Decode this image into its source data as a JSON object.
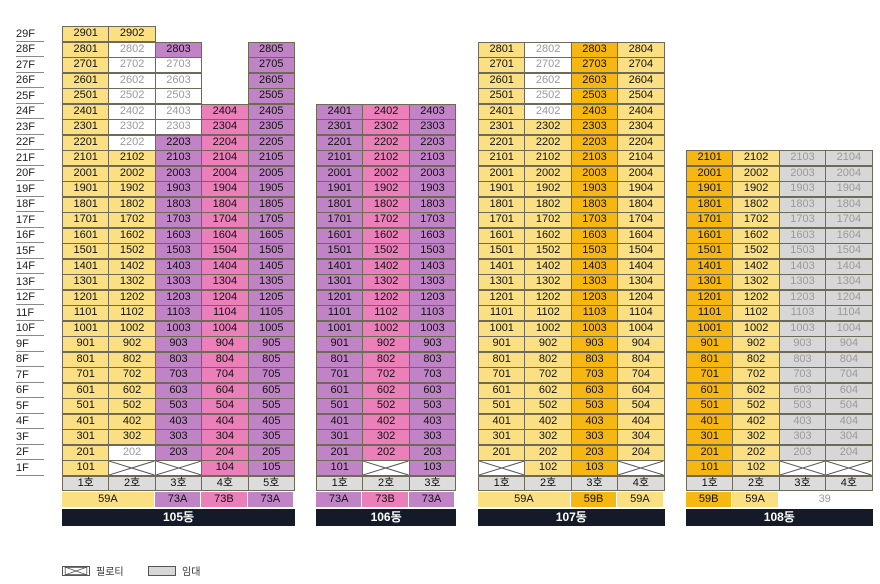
{
  "colors": {
    "yellow": "#fbe083",
    "gold": "#f6b713",
    "purple": "#c083c5",
    "pink": "#ea7fb9",
    "gray": "#d7d7d7",
    "white": "#ffffff",
    "label": "#dcdcdc",
    "navy": "#141a28"
  },
  "legend": {
    "piloti_label": "필로티",
    "rental_label": "임대"
  },
  "buildings": [
    {
      "name": "105동",
      "lines": [
        "1호",
        "2호",
        "3호",
        "4호",
        "5호"
      ],
      "line_colors": [
        "yellow",
        "yellow",
        "purple",
        "pink",
        "purple"
      ],
      "types": [
        {
          "text": "59A",
          "span": 2,
          "color": "yellow"
        },
        {
          "text": "73A",
          "span": 1,
          "color": "purple"
        },
        {
          "text": "73B",
          "span": 1,
          "color": "pink"
        },
        {
          "text": "73A",
          "span": 1,
          "color": "purple"
        }
      ],
      "tops": [
        29,
        29,
        28,
        24,
        28
      ],
      "overrides": [
        {
          "floor": 1,
          "line": 2,
          "type": "piloti"
        },
        {
          "floor": 1,
          "line": 3,
          "type": "piloti"
        },
        {
          "floor": 2,
          "line": 2,
          "type": "white_dim"
        },
        {
          "floor": 22,
          "line": 2,
          "type": "white_dim"
        },
        {
          "floor": 23,
          "line": 2,
          "type": "white_dim"
        },
        {
          "floor": 24,
          "line": 2,
          "type": "white_dim"
        },
        {
          "floor": 25,
          "line": 2,
          "type": "white_dim"
        },
        {
          "floor": 26,
          "line": 2,
          "type": "white_dim"
        },
        {
          "floor": 27,
          "line": 2,
          "type": "white_dim"
        },
        {
          "floor": 28,
          "line": 2,
          "type": "white_dim"
        },
        {
          "floor": 23,
          "line": 3,
          "type": "white_dim"
        },
        {
          "floor": 24,
          "line": 3,
          "type": "white_dim"
        },
        {
          "floor": 25,
          "line": 3,
          "type": "white_dim"
        },
        {
          "floor": 26,
          "line": 3,
          "type": "white_dim"
        },
        {
          "floor": 27,
          "line": 3,
          "type": "white_dim"
        }
      ]
    },
    {
      "name": "106동",
      "lines": [
        "1호",
        "2호",
        "3호"
      ],
      "line_colors": [
        "purple",
        "pink",
        "purple"
      ],
      "types": [
        {
          "text": "73A",
          "span": 1,
          "color": "purple"
        },
        {
          "text": "73B",
          "span": 1,
          "color": "pink"
        },
        {
          "text": "73A",
          "span": 1,
          "color": "purple"
        }
      ],
      "tops": [
        24,
        24,
        24
      ],
      "overrides": [
        {
          "floor": 1,
          "line": 2,
          "type": "piloti"
        }
      ]
    },
    {
      "name": "107동",
      "lines": [
        "1호",
        "2호",
        "3호",
        "4호"
      ],
      "line_colors": [
        "yellow",
        "yellow",
        "gold",
        "yellow"
      ],
      "types": [
        {
          "text": "59A",
          "span": 2,
          "color": "yellow"
        },
        {
          "text": "59B",
          "span": 1,
          "color": "gold"
        },
        {
          "text": "59A",
          "span": 1,
          "color": "yellow"
        }
      ],
      "tops": [
        28,
        28,
        28,
        28
      ],
      "overrides": [
        {
          "floor": 1,
          "line": 1,
          "type": "piloti"
        },
        {
          "floor": 1,
          "line": 4,
          "type": "piloti"
        },
        {
          "floor": 24,
          "line": 2,
          "type": "white_dim"
        },
        {
          "floor": 25,
          "line": 2,
          "type": "white_dim"
        },
        {
          "floor": 26,
          "line": 2,
          "type": "white_dim"
        },
        {
          "floor": 27,
          "line": 2,
          "type": "white_dim"
        },
        {
          "floor": 28,
          "line": 2,
          "type": "white_dim"
        }
      ]
    },
    {
      "name": "108동",
      "lines": [
        "1호",
        "2호",
        "3호",
        "4호"
      ],
      "line_colors": [
        "gold",
        "yellow",
        "gray",
        "gray"
      ],
      "types": [
        {
          "text": "59B",
          "span": 1,
          "color": "gold"
        },
        {
          "text": "59A",
          "span": 1,
          "color": "yellow"
        },
        {
          "text": "39",
          "span": 2,
          "color": "white"
        }
      ],
      "tops": [
        21,
        21,
        21,
        21
      ],
      "overrides": [
        {
          "floor": 1,
          "line": 3,
          "type": "piloti"
        },
        {
          "floor": 1,
          "line": 4,
          "type": "piloti"
        }
      ]
    }
  ]
}
